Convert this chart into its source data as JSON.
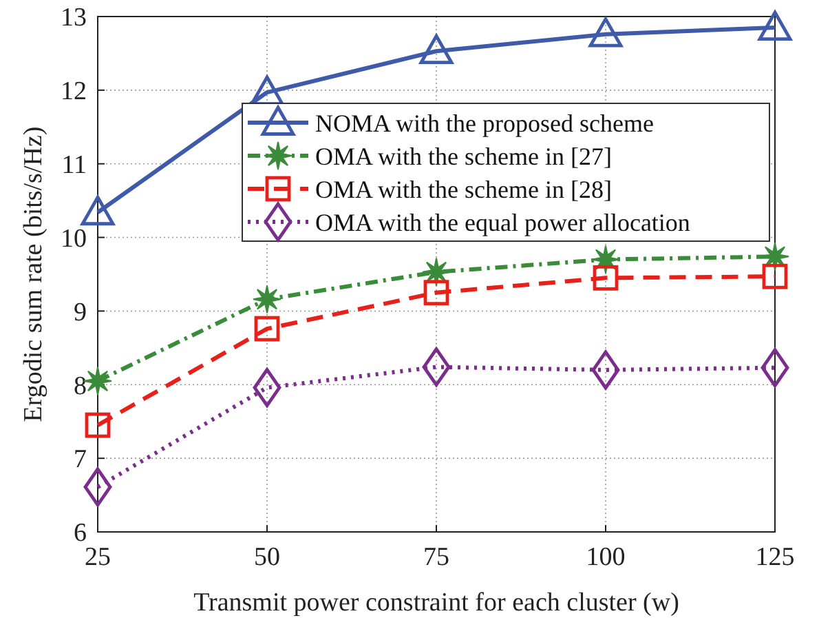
{
  "chart_data": {
    "type": "line",
    "xlabel": "Transmit power constraint for each cluster (w)",
    "ylabel": "Ergodic sum rate (bits/s/Hz)",
    "x": [
      25,
      50,
      75,
      100,
      125
    ],
    "xlim": [
      25,
      125
    ],
    "xticks": [
      25,
      50,
      75,
      100,
      125
    ],
    "ylim": [
      6,
      13
    ],
    "yticks": [
      6,
      7,
      8,
      9,
      10,
      11,
      12,
      13
    ],
    "grid": true,
    "legend": "top right",
    "series": [
      {
        "name": "NOMA with the proposed scheme",
        "color": "#3f5aa8",
        "marker": "triangle",
        "line_style": "solid",
        "values": [
          10.34,
          11.97,
          12.53,
          12.76,
          12.85
        ]
      },
      {
        "name": "OMA with the scheme in [27]",
        "color": "#3a8c3a",
        "marker": "star",
        "line_style": "dashdot",
        "values": [
          8.05,
          9.16,
          9.53,
          9.7,
          9.74
        ]
      },
      {
        "name": "OMA with the scheme in [28]",
        "color": "#e8201a",
        "marker": "square",
        "line_style": "dashed",
        "values": [
          7.45,
          8.76,
          9.25,
          9.45,
          9.47
        ]
      },
      {
        "name": "OMA with the equal power allocation",
        "color": "#7b2d8e",
        "marker": "diamond",
        "line_style": "dotted",
        "values": [
          6.61,
          7.96,
          8.24,
          8.2,
          8.23
        ]
      }
    ]
  }
}
